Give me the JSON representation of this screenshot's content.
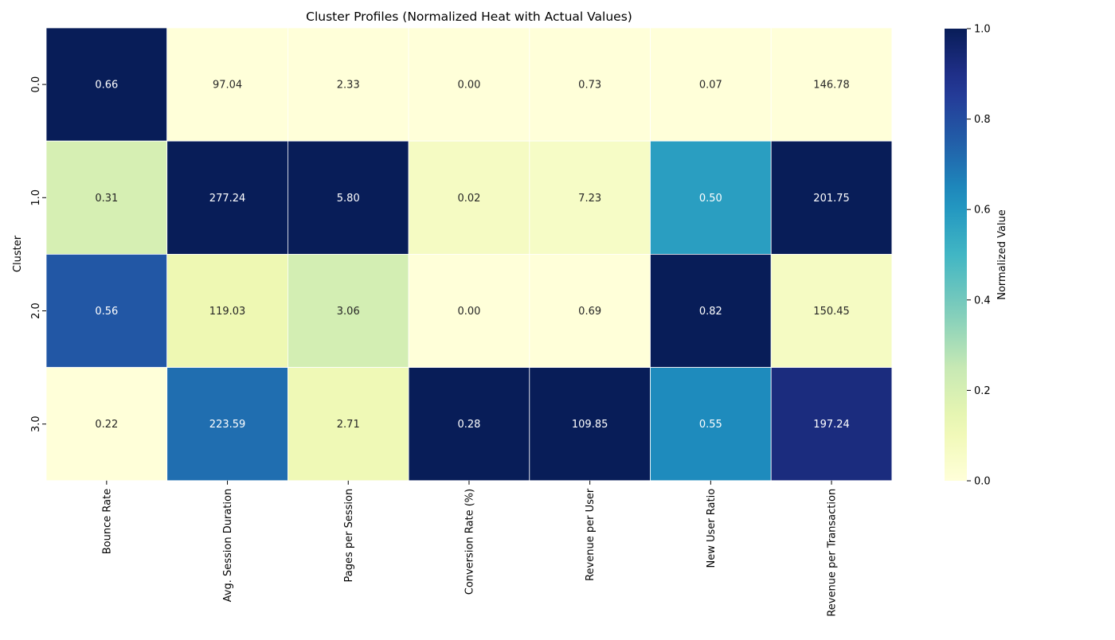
{
  "chart_data": {
    "type": "heatmap",
    "title": "Cluster Profiles (Normalized Heat with Actual Values)",
    "ylabel": "Cluster",
    "xlabel": "",
    "colorbar_label": "Normalized Value",
    "colorbar_ticks": [
      "0.0",
      "0.2",
      "0.4",
      "0.6",
      "0.8",
      "1.0"
    ],
    "colorbar_range": [
      0,
      1
    ],
    "colormap": "YlGnBu",
    "x_categories": [
      "Bounce Rate",
      "Avg. Session Duration",
      "Pages per Session",
      "Conversion Rate (%)",
      "Revenue per User",
      "New User Ratio",
      "Revenue per Transaction"
    ],
    "y_categories": [
      "0.0",
      "1.0",
      "2.0",
      "3.0"
    ],
    "values": [
      [
        0.66,
        97.04,
        2.33,
        0.0,
        0.73,
        0.07,
        146.78
      ],
      [
        0.31,
        277.24,
        5.8,
        0.02,
        7.23,
        0.5,
        201.75
      ],
      [
        0.56,
        119.03,
        3.06,
        0.0,
        0.69,
        0.82,
        150.45
      ],
      [
        0.22,
        223.59,
        2.71,
        0.28,
        109.85,
        0.55,
        197.24
      ]
    ],
    "value_labels": [
      [
        "0.66",
        "97.04",
        "2.33",
        "0.00",
        "0.73",
        "0.07",
        "146.78"
      ],
      [
        "0.31",
        "277.24",
        "5.80",
        "0.02",
        "7.23",
        "0.50",
        "201.75"
      ],
      [
        "0.56",
        "119.03",
        "3.06",
        "0.00",
        "0.69",
        "0.82",
        "150.45"
      ],
      [
        "0.22",
        "223.59",
        "2.71",
        "0.28",
        "109.85",
        "0.55",
        "197.24"
      ]
    ],
    "normalized": [
      [
        1.0,
        0.0,
        0.0,
        0.0,
        0.0,
        0.0,
        0.0
      ],
      [
        0.2,
        1.0,
        1.0,
        0.07,
        0.06,
        0.58,
        1.0
      ],
      [
        0.77,
        0.12,
        0.21,
        0.0,
        0.0,
        1.0,
        0.07
      ],
      [
        0.0,
        0.71,
        0.11,
        1.0,
        1.0,
        0.64,
        0.92
      ]
    ]
  }
}
